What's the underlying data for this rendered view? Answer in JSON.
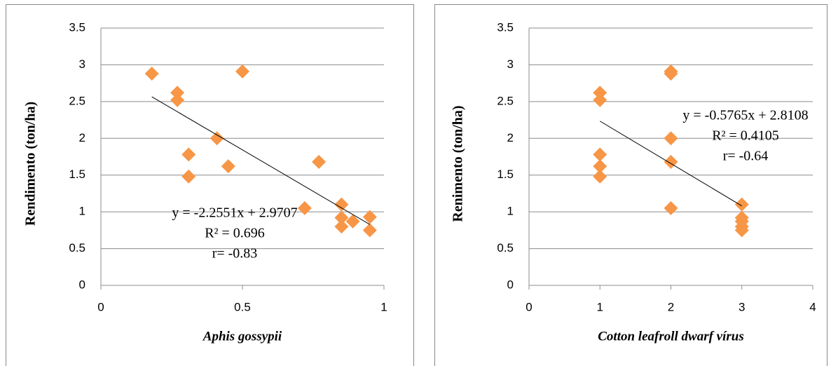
{
  "chart_data": [
    {
      "type": "scatter",
      "x_label": "Aphis gossypii",
      "y_label": "Rendimento (ton/ha)",
      "x": [
        0.18,
        0.27,
        0.27,
        0.5,
        0.31,
        0.41,
        0.31,
        0.45,
        0.77,
        0.72,
        0.85,
        0.85,
        0.85,
        0.89,
        0.95,
        0.95
      ],
      "values": [
        2.88,
        2.62,
        2.52,
        2.91,
        1.78,
        2.0,
        1.48,
        1.62,
        1.68,
        1.05,
        1.1,
        0.92,
        0.8,
        0.87,
        0.93,
        0.75
      ],
      "color": "#f79646",
      "xlim": [
        0,
        1
      ],
      "xticks": [
        0,
        0.5,
        1
      ],
      "ylim": [
        0,
        3.5
      ],
      "yticks": [
        0,
        0.5,
        1,
        1.5,
        2,
        2.5,
        3,
        3.5
      ],
      "grid": true,
      "trendline": {
        "x": [
          0.18,
          0.95
        ],
        "values": [
          2.565,
          0.828
        ]
      },
      "annotations": [
        "y = -2.2551x + 2.9707",
        "R² = 0.696",
        "r= -0.83"
      ]
    },
    {
      "type": "scatter",
      "x_label": "Cotton leafroll dwarf vírus",
      "y_label": "Renimento (ton/ha)",
      "x": [
        1,
        1,
        1,
        1,
        1,
        2,
        2,
        2,
        2,
        2,
        3,
        3,
        3,
        3,
        3
      ],
      "values": [
        2.62,
        2.52,
        1.78,
        1.62,
        1.48,
        2.91,
        2.88,
        2.0,
        1.68,
        1.05,
        1.1,
        0.92,
        0.87,
        0.8,
        0.75
      ],
      "color": "#f79646",
      "xlim": [
        0,
        4
      ],
      "xticks": [
        0,
        1,
        2,
        3,
        4
      ],
      "ylim": [
        0,
        3.5
      ],
      "yticks": [
        0,
        0.5,
        1,
        1.5,
        2,
        2.5,
        3,
        3.5
      ],
      "grid": true,
      "trendline": {
        "x": [
          1,
          3
        ],
        "values": [
          2.234,
          1.081
        ]
      },
      "annotations": [
        "y = -0.5765x + 2.8108",
        "R² = 0.4105",
        "r= -0.64"
      ]
    }
  ]
}
